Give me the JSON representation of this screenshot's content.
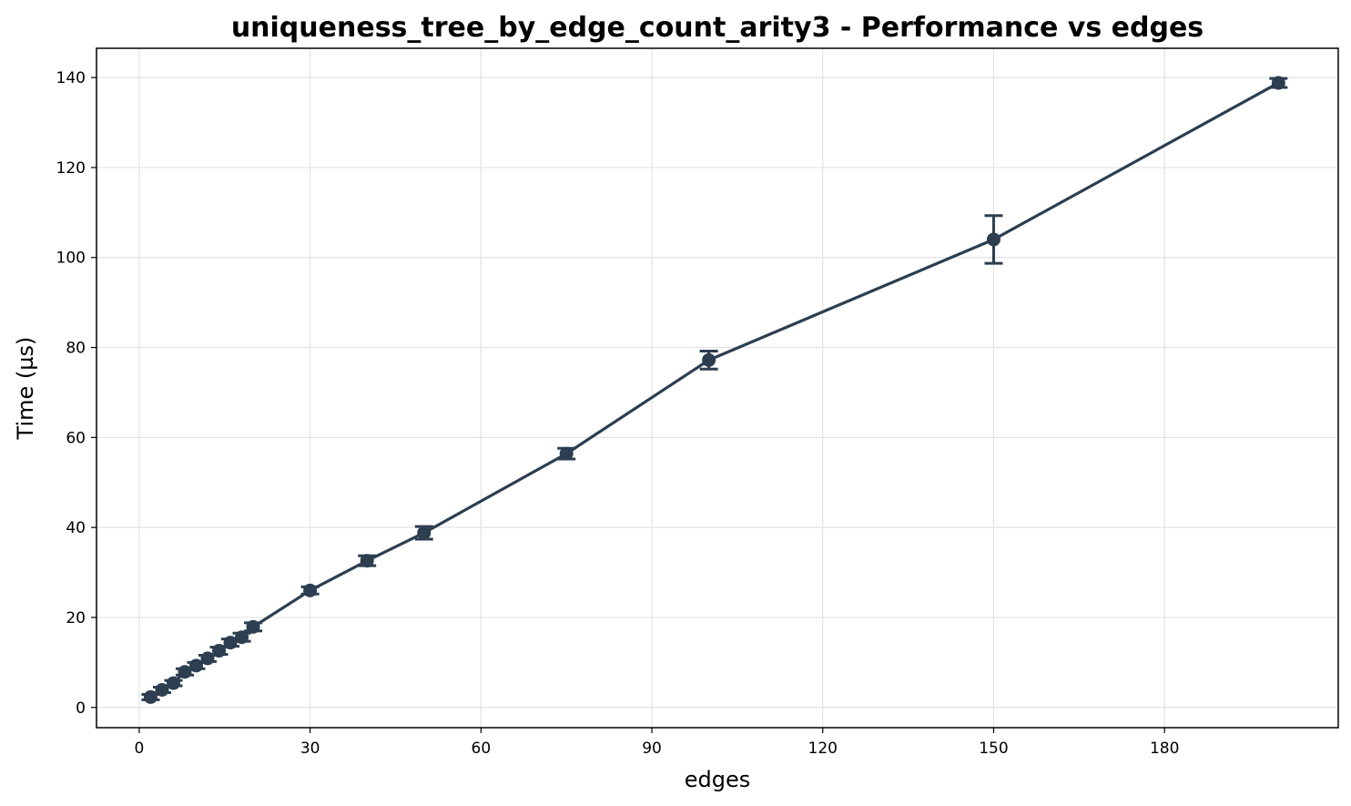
{
  "chart_data": {
    "type": "line",
    "title": "uniqueness_tree_by_edge_count_arity3 - Performance vs edges",
    "xlabel": "edges",
    "ylabel": "Time (µs)",
    "xlim": [
      -7.5,
      210.5
    ],
    "ylim": [
      -4.5,
      146.5
    ],
    "xticks": [
      0,
      30,
      60,
      90,
      120,
      150,
      180
    ],
    "yticks": [
      0,
      20,
      40,
      60,
      80,
      100,
      120,
      140
    ],
    "grid": true,
    "legend": "none",
    "series": [
      {
        "color": "#2c3e50",
        "x": [
          2,
          4,
          6,
          8,
          10,
          12,
          14,
          16,
          18,
          20,
          30,
          40,
          50,
          75,
          100,
          150,
          200
        ],
        "y": [
          2.3,
          3.9,
          5.4,
          7.9,
          9.3,
          10.9,
          12.6,
          14.4,
          15.6,
          17.9,
          26.0,
          32.6,
          38.8,
          56.4,
          77.2,
          104.0,
          138.8
        ],
        "err": [
          0.6,
          0.6,
          0.6,
          0.7,
          0.7,
          0.7,
          0.8,
          0.8,
          0.9,
          0.9,
          0.8,
          1.1,
          1.4,
          1.2,
          2.0,
          5.3,
          1.0
        ]
      }
    ]
  }
}
